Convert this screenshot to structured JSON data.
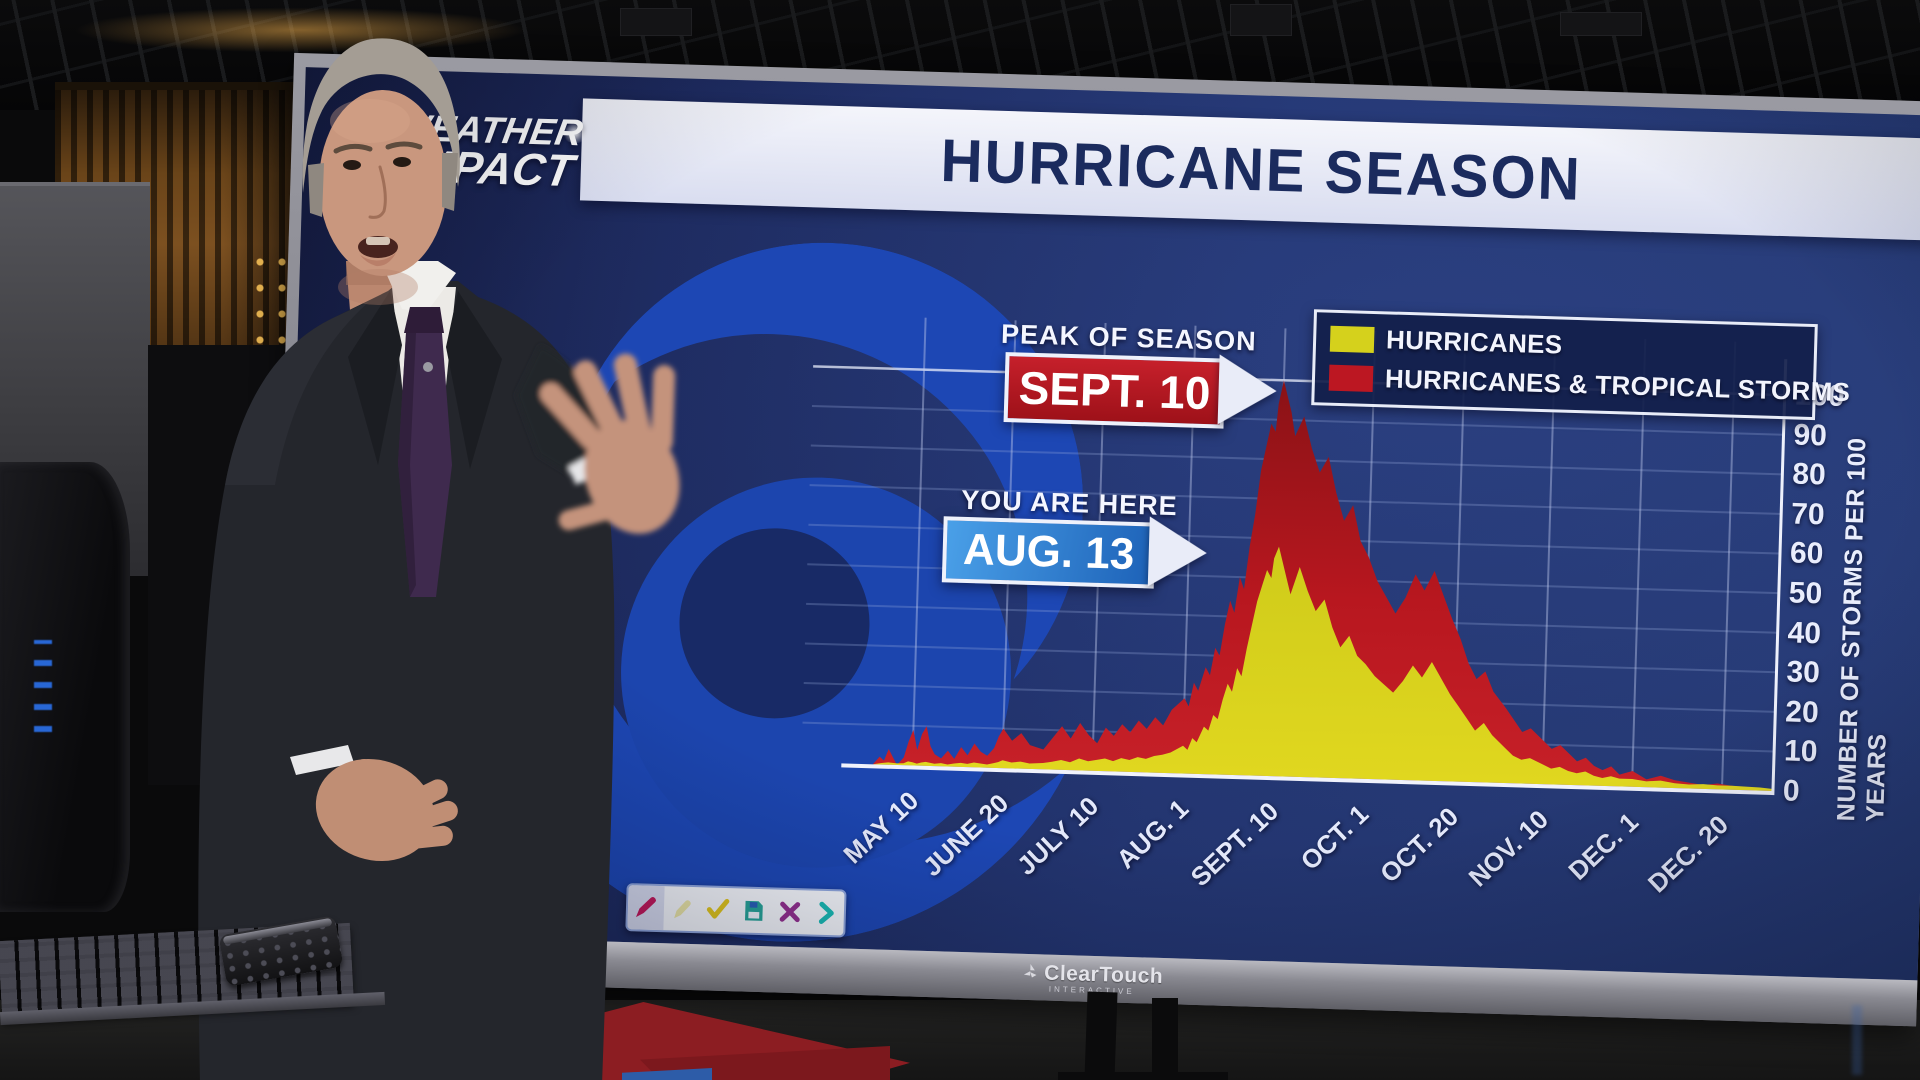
{
  "screen": {
    "brand": {
      "line1": "WEATHER",
      "line2": "IMPACT"
    },
    "banner_title": "HURRICANE SEASON",
    "callouts": {
      "peak": {
        "label": "PEAK OF SEASON",
        "date": "SEPT. 10",
        "box_color": "#b5121c"
      },
      "current": {
        "label": "YOU ARE HERE",
        "date": "AUG. 13",
        "box_color": "#2d7dd2"
      }
    },
    "legend": [
      {
        "label": "HURRICANES",
        "color": "#d5d11c"
      },
      {
        "label": "HURRICANES & TROPICAL STORMS",
        "color": "#bc1722"
      }
    ],
    "toolbar": [
      {
        "name": "pen-icon",
        "color": "#c2185b",
        "selected": true
      },
      {
        "name": "highlighter-icon",
        "color": "#e9e4a6",
        "selected": false
      },
      {
        "name": "check-icon",
        "color": "#e0c51d",
        "selected": false
      },
      {
        "name": "save-icon",
        "color": "#27a398",
        "selected": false
      },
      {
        "name": "close-icon",
        "color": "#93308f",
        "selected": false
      },
      {
        "name": "next-icon",
        "color": "#19b9b4",
        "selected": false
      }
    ],
    "bezel": {
      "name": "ClearTouch",
      "sub": "INTERACTIVE"
    }
  },
  "chart_data": {
    "type": "area",
    "title": "HURRICANE SEASON",
    "ylabel": "NUMBER OF STORMS PER 100 YEARS",
    "ylim": [
      0,
      100
    ],
    "yticks": [
      0,
      10,
      20,
      30,
      40,
      50,
      60,
      70,
      80,
      90,
      100
    ],
    "xticklabels": [
      "MAY 10",
      "JUNE 20",
      "JULY 10",
      "AUG. 1",
      "SEPT. 10",
      "OCT. 1",
      "OCT. 20",
      "NOV. 10",
      "DEC. 1",
      "DEC. 20"
    ],
    "x_tick_days": [
      130,
      171,
      191,
      213,
      253,
      274,
      293,
      314,
      335,
      354
    ],
    "x_unit": "day of year",
    "grid": true,
    "legend_position": "top-right",
    "series": [
      {
        "name": "HURRICANES & TROPICAL STORMS",
        "color": "#b5161f",
        "points": [
          [
            112,
            0
          ],
          [
            115,
            2
          ],
          [
            117,
            1
          ],
          [
            119,
            4
          ],
          [
            121,
            2
          ],
          [
            123,
            0
          ],
          [
            126,
            2
          ],
          [
            128,
            6
          ],
          [
            130,
            9
          ],
          [
            132,
            4
          ],
          [
            134,
            8
          ],
          [
            136,
            10
          ],
          [
            138,
            5
          ],
          [
            140,
            3
          ],
          [
            143,
            2
          ],
          [
            146,
            4
          ],
          [
            149,
            2
          ],
          [
            152,
            5
          ],
          [
            155,
            3
          ],
          [
            158,
            6
          ],
          [
            161,
            4
          ],
          [
            164,
            3
          ],
          [
            167,
            5
          ],
          [
            169,
            8
          ],
          [
            171,
            10
          ],
          [
            173,
            7
          ],
          [
            175,
            9
          ],
          [
            177,
            6
          ],
          [
            180,
            5
          ],
          [
            182,
            8
          ],
          [
            184,
            11
          ],
          [
            186,
            8
          ],
          [
            188,
            12
          ],
          [
            190,
            9
          ],
          [
            192,
            7
          ],
          [
            194,
            11
          ],
          [
            196,
            9
          ],
          [
            198,
            12
          ],
          [
            200,
            10
          ],
          [
            202,
            13
          ],
          [
            204,
            11
          ],
          [
            206,
            14
          ],
          [
            208,
            12
          ],
          [
            210,
            16
          ],
          [
            213,
            19
          ],
          [
            215,
            17
          ],
          [
            217,
            23
          ],
          [
            219,
            21
          ],
          [
            222,
            27
          ],
          [
            224,
            25
          ],
          [
            226,
            32
          ],
          [
            228,
            30
          ],
          [
            230,
            38
          ],
          [
            232,
            44
          ],
          [
            234,
            41
          ],
          [
            236,
            50
          ],
          [
            238,
            47
          ],
          [
            240,
            58
          ],
          [
            242,
            66
          ],
          [
            244,
            77
          ],
          [
            246,
            83
          ],
          [
            248,
            89
          ],
          [
            250,
            87
          ],
          [
            251,
            94
          ],
          [
            253,
            100
          ],
          [
            255,
            92
          ],
          [
            256,
            86
          ],
          [
            258,
            91
          ],
          [
            260,
            83
          ],
          [
            262,
            77
          ],
          [
            264,
            81
          ],
          [
            266,
            72
          ],
          [
            268,
            65
          ],
          [
            270,
            69
          ],
          [
            272,
            60
          ],
          [
            274,
            56
          ],
          [
            276,
            50
          ],
          [
            278,
            46
          ],
          [
            280,
            42
          ],
          [
            282,
            46
          ],
          [
            284,
            52
          ],
          [
            286,
            48
          ],
          [
            288,
            53
          ],
          [
            290,
            47
          ],
          [
            292,
            41
          ],
          [
            294,
            36
          ],
          [
            296,
            30
          ],
          [
            298,
            26
          ],
          [
            300,
            28
          ],
          [
            302,
            23
          ],
          [
            305,
            19
          ],
          [
            307,
            16
          ],
          [
            309,
            13
          ],
          [
            311,
            14
          ],
          [
            314,
            11
          ],
          [
            316,
            9
          ],
          [
            318,
            10
          ],
          [
            320,
            8
          ],
          [
            322,
            6
          ],
          [
            324,
            7
          ],
          [
            326,
            5
          ],
          [
            328,
            4
          ],
          [
            330,
            5
          ],
          [
            332,
            3
          ],
          [
            335,
            4
          ],
          [
            338,
            2
          ],
          [
            341,
            3
          ],
          [
            344,
            2
          ],
          [
            347,
            1.5
          ],
          [
            350,
            1
          ],
          [
            353,
            1.5
          ],
          [
            356,
            1
          ],
          [
            359,
            0.8
          ],
          [
            362,
            0.6
          ],
          [
            365,
            0
          ]
        ]
      },
      {
        "name": "HURRICANES",
        "color": "#d9d41d",
        "points": [
          [
            112,
            0
          ],
          [
            116,
            0.4
          ],
          [
            119,
            0.6
          ],
          [
            121,
            0.5
          ],
          [
            123,
            0.4
          ],
          [
            126,
            0.5
          ],
          [
            128,
            1
          ],
          [
            130,
            0.8
          ],
          [
            132,
            0.5
          ],
          [
            134,
            0.8
          ],
          [
            136,
            1
          ],
          [
            140,
            0.6
          ],
          [
            143,
            0.8
          ],
          [
            146,
            0.5
          ],
          [
            149,
            0.8
          ],
          [
            152,
            1
          ],
          [
            155,
            0.8
          ],
          [
            158,
            1.2
          ],
          [
            161,
            1
          ],
          [
            164,
            0.8
          ],
          [
            167,
            1.2
          ],
          [
            169,
            1.5
          ],
          [
            171,
            2
          ],
          [
            173,
            1.5
          ],
          [
            175,
            1.8
          ],
          [
            177,
            1.4
          ],
          [
            180,
            1.6
          ],
          [
            182,
            2
          ],
          [
            184,
            2.5
          ],
          [
            186,
            2
          ],
          [
            188,
            3
          ],
          [
            190,
            2.4
          ],
          [
            192,
            2.8
          ],
          [
            194,
            3.2
          ],
          [
            196,
            2.6
          ],
          [
            198,
            3.4
          ],
          [
            200,
            3
          ],
          [
            202,
            3.8
          ],
          [
            204,
            3.4
          ],
          [
            206,
            4.2
          ],
          [
            208,
            4.6
          ],
          [
            210,
            5.2
          ],
          [
            213,
            7
          ],
          [
            215,
            6
          ],
          [
            217,
            9
          ],
          [
            219,
            8
          ],
          [
            222,
            12
          ],
          [
            224,
            11
          ],
          [
            226,
            15
          ],
          [
            228,
            14
          ],
          [
            230,
            19
          ],
          [
            232,
            23
          ],
          [
            234,
            21
          ],
          [
            236,
            27
          ],
          [
            238,
            25
          ],
          [
            240,
            32
          ],
          [
            242,
            38
          ],
          [
            244,
            44
          ],
          [
            246,
            48
          ],
          [
            248,
            52
          ],
          [
            250,
            50
          ],
          [
            251,
            55
          ],
          [
            253,
            58
          ],
          [
            255,
            50
          ],
          [
            256,
            46
          ],
          [
            258,
            53
          ],
          [
            260,
            47
          ],
          [
            262,
            42
          ],
          [
            264,
            45
          ],
          [
            266,
            38
          ],
          [
            268,
            33
          ],
          [
            270,
            36
          ],
          [
            272,
            31
          ],
          [
            274,
            29
          ],
          [
            276,
            26
          ],
          [
            278,
            24
          ],
          [
            280,
            22
          ],
          [
            282,
            25
          ],
          [
            284,
            29
          ],
          [
            286,
            26
          ],
          [
            288,
            30
          ],
          [
            290,
            26
          ],
          [
            292,
            22
          ],
          [
            294,
            19
          ],
          [
            296,
            16
          ],
          [
            298,
            13
          ],
          [
            300,
            15
          ],
          [
            302,
            12
          ],
          [
            305,
            9
          ],
          [
            307,
            7
          ],
          [
            309,
            6
          ],
          [
            311,
            6.5
          ],
          [
            314,
            5
          ],
          [
            316,
            4
          ],
          [
            318,
            4.5
          ],
          [
            320,
            3.5
          ],
          [
            322,
            3
          ],
          [
            324,
            3.5
          ],
          [
            326,
            2.5
          ],
          [
            328,
            2
          ],
          [
            330,
            2.5
          ],
          [
            332,
            2
          ],
          [
            335,
            2
          ],
          [
            338,
            1.5
          ],
          [
            341,
            1.8
          ],
          [
            344,
            1.2
          ],
          [
            347,
            1
          ],
          [
            350,
            1.2
          ],
          [
            353,
            1
          ],
          [
            356,
            1
          ],
          [
            359,
            0.9
          ],
          [
            362,
            0.8
          ],
          [
            365,
            0.5
          ]
        ]
      }
    ]
  }
}
